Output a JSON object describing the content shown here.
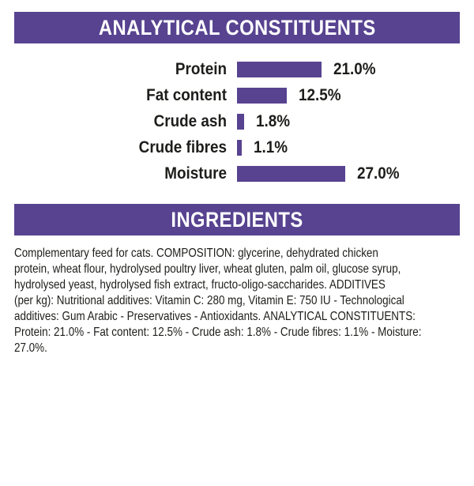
{
  "page": {
    "background_color": "#ffffff",
    "accent_purple": "#574390",
    "text_color": "#1d1d1b",
    "header_text_color": "#ffffff"
  },
  "analytical": {
    "header": "ANALYTICAL CONSTITUENTS",
    "rows": [
      {
        "label": "Protein",
        "value": "21.0%",
        "pct": 21.0
      },
      {
        "label": "Fat content",
        "value": "12.5%",
        "pct": 12.5
      },
      {
        "label": "Crude ash",
        "value": "1.8%",
        "pct": 1.8
      },
      {
        "label": "Crude fibres",
        "value": "1.1%",
        "pct": 1.1
      },
      {
        "label": "Moisture",
        "value": "27.0%",
        "pct": 27.0
      }
    ]
  },
  "chart_data": {
    "type": "bar",
    "orientation": "horizontal",
    "title": "ANALYTICAL CONSTITUENTS",
    "categories": [
      "Protein",
      "Fat content",
      "Crude ash",
      "Crude fibres",
      "Moisture"
    ],
    "values": [
      21.0,
      12.5,
      1.8,
      1.1,
      27.0
    ],
    "data_labels": [
      "21.0%",
      "12.5%",
      "1.8%",
      "1.1%",
      "27.0%"
    ],
    "unit": "%",
    "xlim": [
      0,
      30
    ],
    "grid": false,
    "legend": false,
    "bar_color": "#574390",
    "label_position": "right-of-bar"
  },
  "ingredients": {
    "header": "INGREDIENTS",
    "lines": [
      "Complementary feed for cats. COMPOSITION: glycerine, dehydrated chicken",
      "protein, wheat flour, hydrolysed poultry liver, wheat gluten, palm oil, glucose syrup,",
      "hydrolysed yeast, hydrolysed fish extract, fructo-oligo-saccharides. ADDITIVES",
      "(per kg): Nutritional additives: Vitamin C: 280 mg, Vitamin E: 750 IU - Technological",
      "additives: Gum Arabic - Preservatives - Antioxidants. ANALYTICAL CONSTITUENTS:",
      "Protein: 21.0% - Fat content: 12.5% - Crude ash: 1.8% - Crude fibres: 1.1% - Moisture:",
      "27.0%."
    ]
  }
}
